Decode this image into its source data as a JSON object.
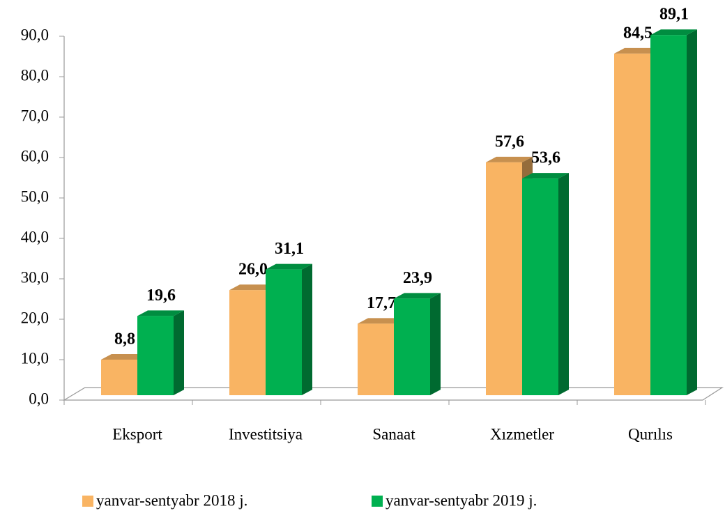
{
  "chart_data": {
    "type": "bar3d",
    "categories": [
      "Eksport",
      "Investitsiya",
      "Sanaat",
      "Xızmetler",
      "Qurılıs"
    ],
    "series": [
      {
        "name": "yanvar-sentyabr 2018 j.",
        "color": "#f9b463",
        "values": [
          8.8,
          26.0,
          17.7,
          57.6,
          84.5
        ],
        "value_labels": [
          "8,8",
          "26,0",
          "17,7",
          "57,6",
          "84,5"
        ]
      },
      {
        "name": "yanvar-sentyabr 2019 j.",
        "color": "#00b050",
        "values": [
          19.6,
          31.1,
          23.9,
          53.6,
          89.1
        ],
        "value_labels": [
          "19,6",
          "31,1",
          "23,9",
          "53,6",
          "89,1"
        ]
      }
    ],
    "ylim": [
      0,
      90
    ],
    "yticks": [
      {
        "value": 0,
        "label": "0,0"
      },
      {
        "value": 10,
        "label": "10,0"
      },
      {
        "value": 20,
        "label": "20,0"
      },
      {
        "value": 30,
        "label": "30,0"
      },
      {
        "value": 40,
        "label": "40,0"
      },
      {
        "value": 50,
        "label": "50,0"
      },
      {
        "value": 60,
        "label": "60,0"
      },
      {
        "value": 70,
        "label": "70,0"
      },
      {
        "value": 80,
        "label": "80,0"
      },
      {
        "value": 90,
        "label": "90,0"
      }
    ],
    "legend": "bottom"
  }
}
